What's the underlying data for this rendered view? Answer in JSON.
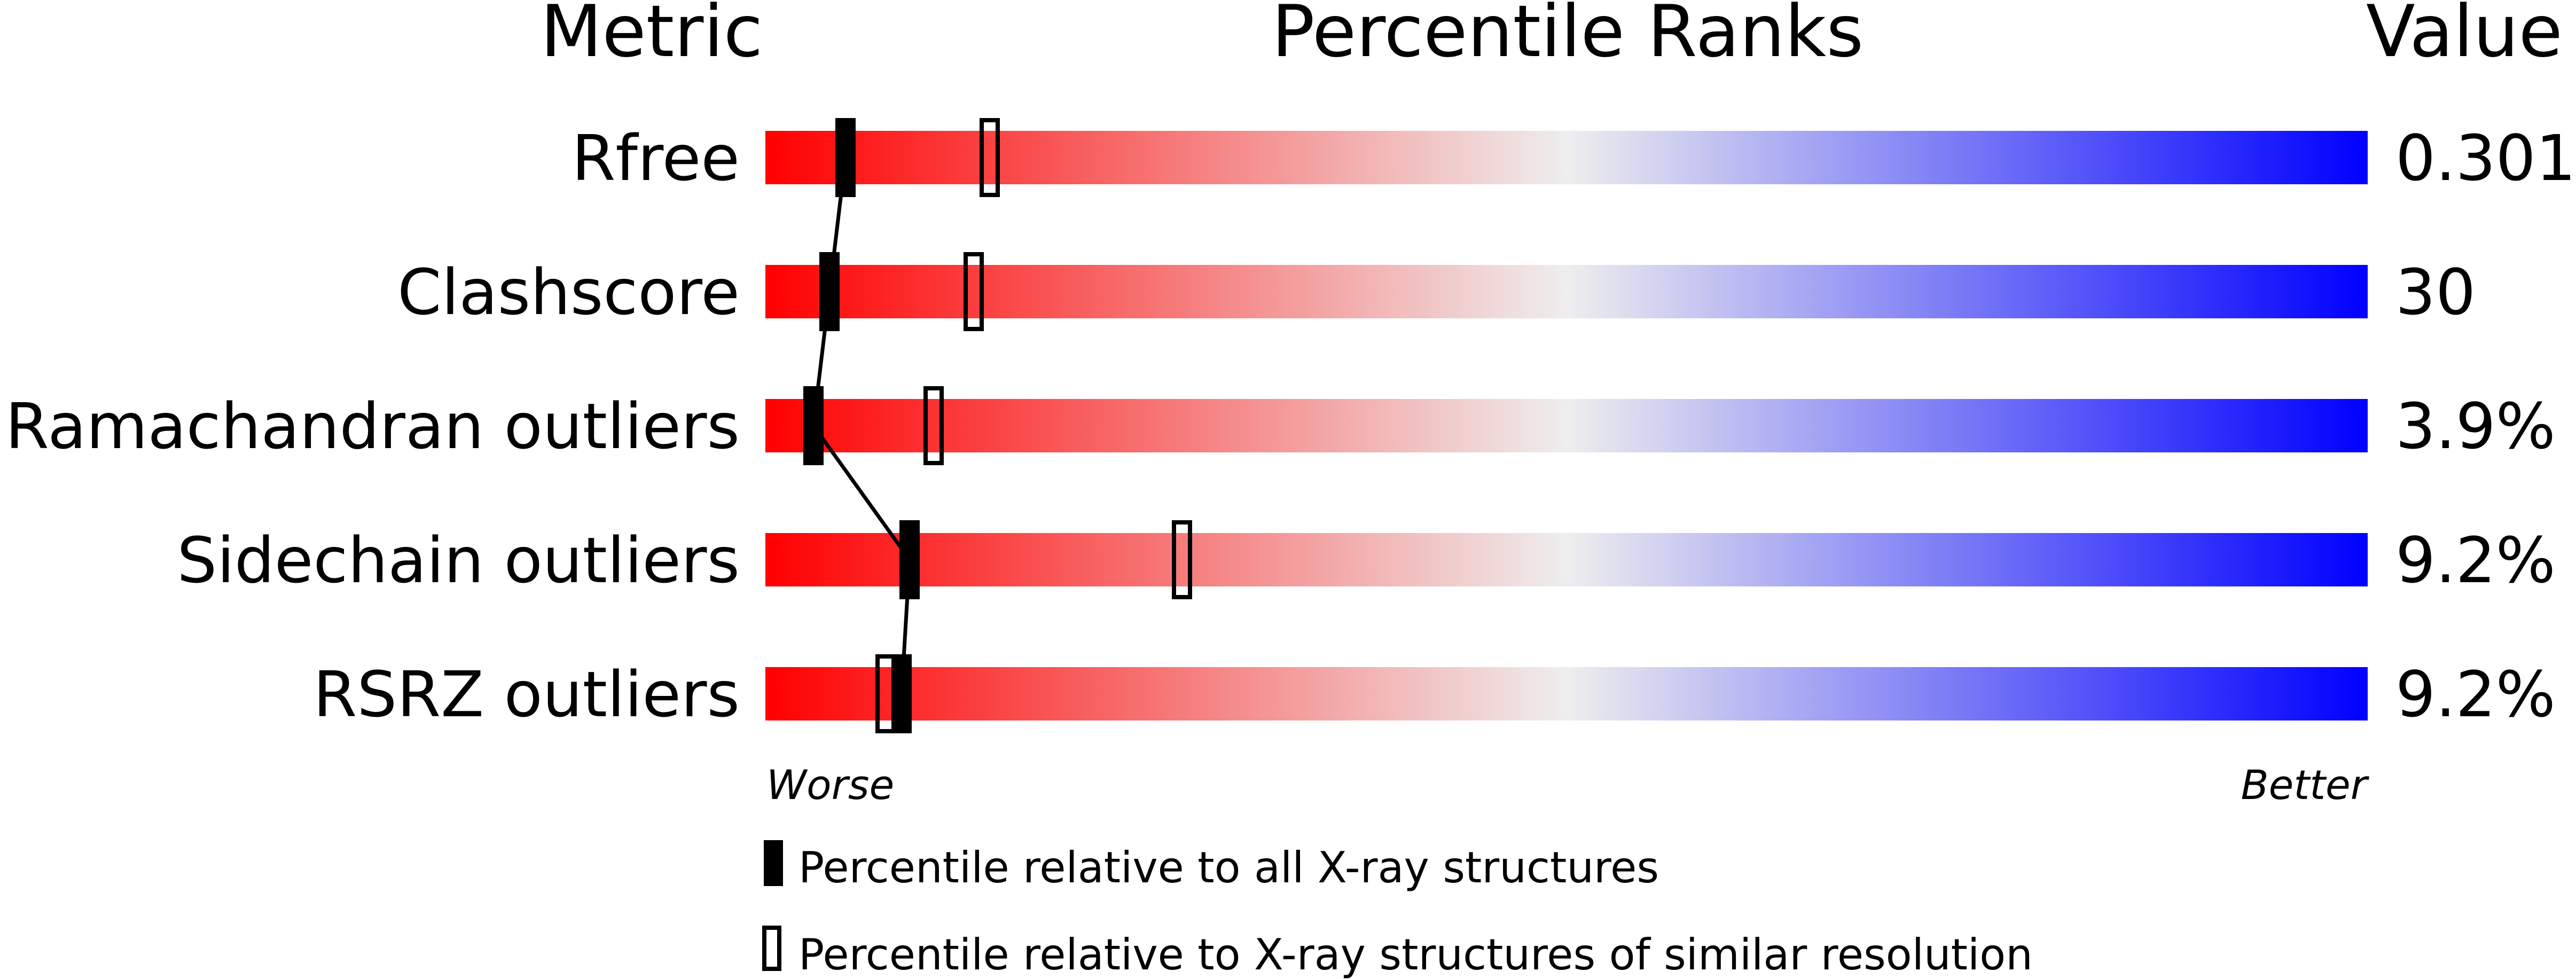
{
  "chart_data": {
    "type": "percentile-ranks",
    "headers": {
      "metric": "Metric",
      "ranks": "Percentile Ranks",
      "value": "Value"
    },
    "x_range": [
      0,
      100
    ],
    "gradient_colors": {
      "worse": "#ff0000",
      "middle": "#eeeeee",
      "better": "#0000ff"
    },
    "rows": [
      {
        "metric": "Rfree",
        "value": "0.301",
        "percentile_all": 5,
        "percentile_similar": 14
      },
      {
        "metric": "Clashscore",
        "value": "30",
        "percentile_all": 4,
        "percentile_similar": 13
      },
      {
        "metric": "Ramachandran outliers",
        "value": "3.9%",
        "percentile_all": 3,
        "percentile_similar": 10.5
      },
      {
        "metric": "Sidechain outliers",
        "value": "9.2%",
        "percentile_all": 9,
        "percentile_similar": 26
      },
      {
        "metric": "RSRZ outliers",
        "value": "9.2%",
        "percentile_all": 8.5,
        "percentile_similar": 7.5
      }
    ],
    "axis_labels": {
      "worse": "Worse",
      "better": "Better"
    },
    "legend": {
      "all": "Percentile relative to all X-ray structures",
      "similar": "Percentile relative to X-ray structures of similar resolution"
    }
  }
}
